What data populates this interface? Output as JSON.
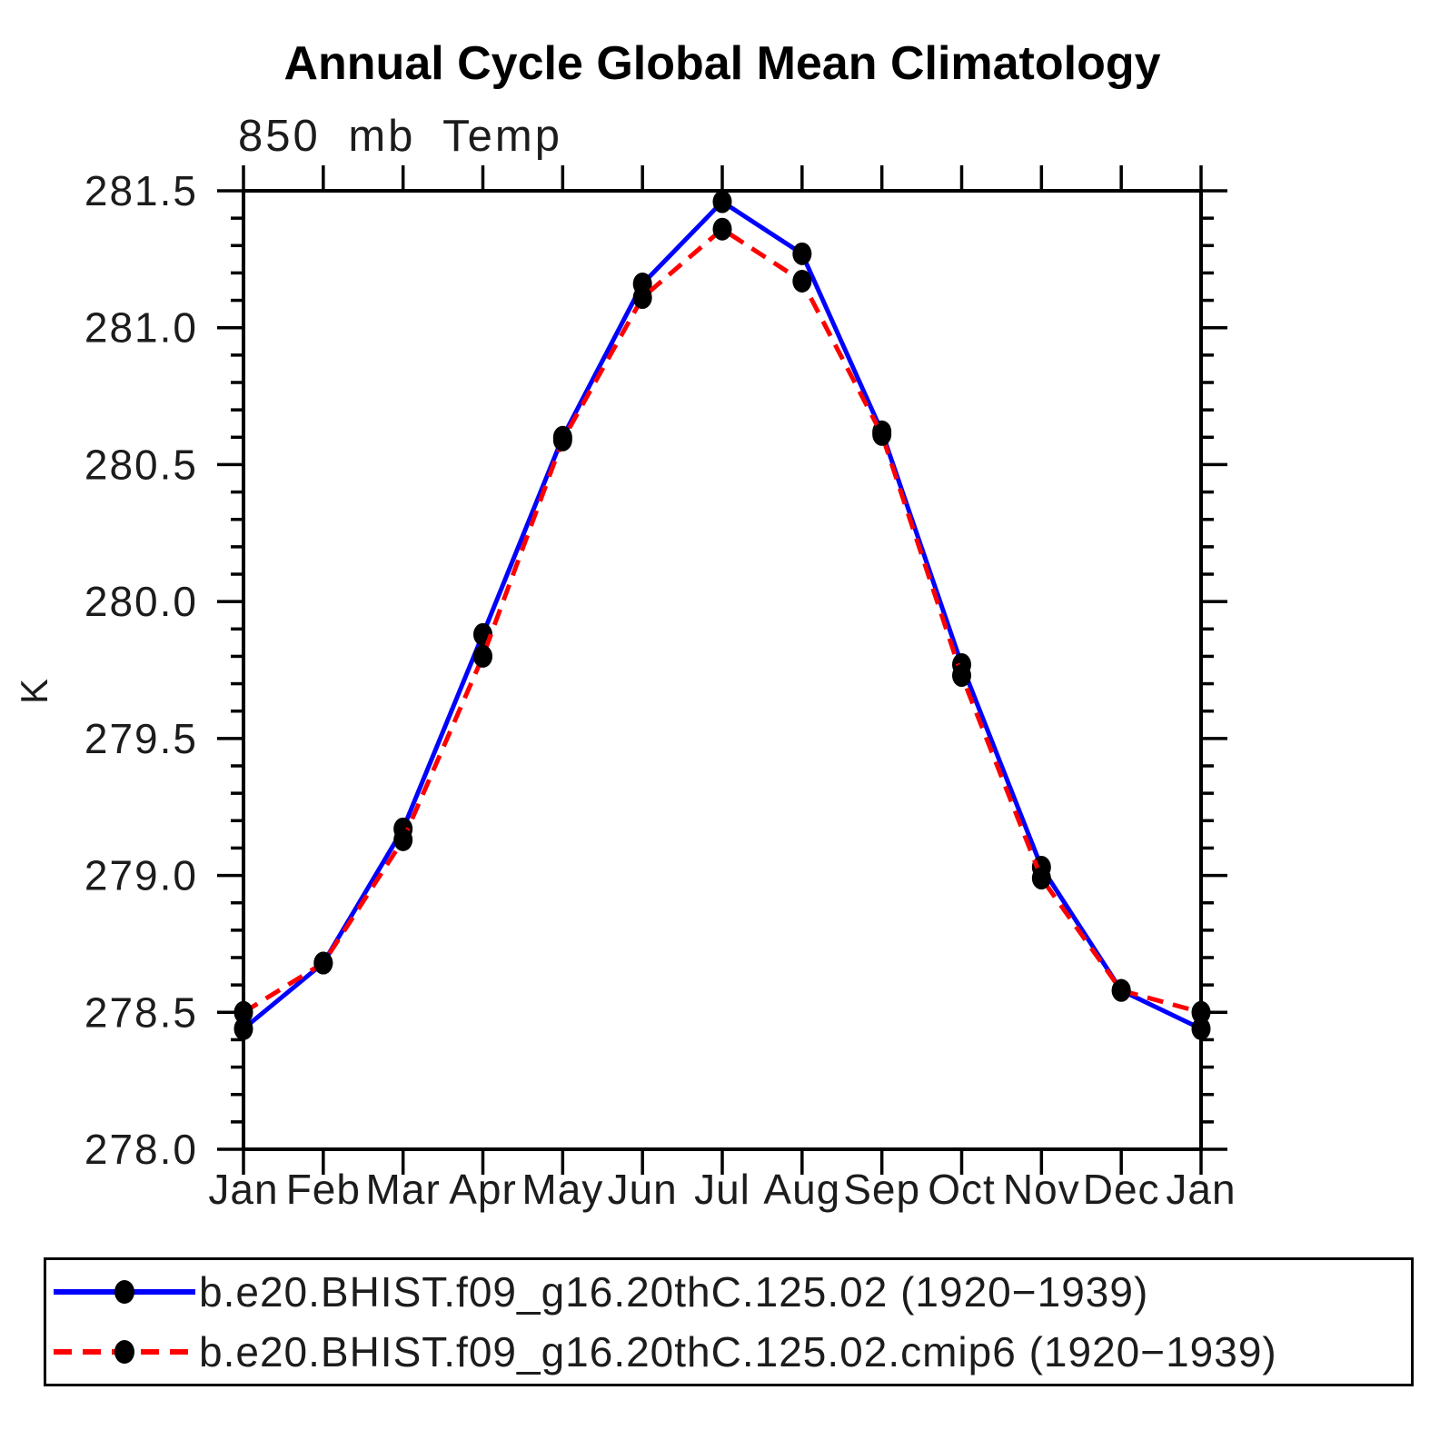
{
  "chart_data": {
    "type": "line",
    "title": "Annual Cycle Global Mean Climatology",
    "subtitle": "850 mb Temp",
    "ylabel": "K",
    "xlabel": "",
    "categories": [
      "Jan",
      "Feb",
      "Mar",
      "Apr",
      "May",
      "Jun",
      "Jul",
      "Aug",
      "Sep",
      "Oct",
      "Nov",
      "Dec",
      "Jan"
    ],
    "ylim": [
      278.0,
      281.5
    ],
    "ytick_major_step": 0.5,
    "ytick_minor_step": 0.1,
    "ytick_labels": [
      "278.0",
      "278.5",
      "279.0",
      "279.5",
      "280.0",
      "280.5",
      "281.0",
      "281.5"
    ],
    "grid": "off",
    "legend_position": "bottom",
    "marker_color": "#000000",
    "series": [
      {
        "name": "b.e20.BHIST.f09_g16.20thC.125.02 (1920−1939)",
        "color": "#0000ff",
        "style": "solid",
        "marker": "circle",
        "values": [
          278.44,
          278.68,
          279.17,
          279.88,
          280.6,
          281.16,
          281.46,
          281.27,
          280.62,
          279.77,
          279.03,
          278.58,
          278.44
        ]
      },
      {
        "name": "b.e20.BHIST.f09_g16.20thC.125.02.cmip6 (1920−1939)",
        "color": "#ff0000",
        "style": "dashed",
        "marker": "circle",
        "values": [
          278.5,
          278.68,
          279.13,
          279.8,
          280.59,
          281.11,
          281.36,
          281.17,
          280.61,
          279.73,
          278.99,
          278.58,
          278.5
        ]
      }
    ]
  }
}
